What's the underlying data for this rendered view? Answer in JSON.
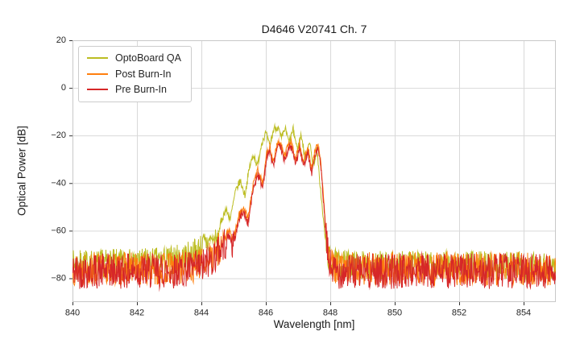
{
  "figure": {
    "title": "D4646 V20741 Ch. 7",
    "xlabel": "Wavelength [nm]",
    "ylabel": "Optical Power [dB]"
  },
  "chart_data": {
    "type": "line",
    "title": "D4646 V20741 Ch. 7",
    "xlabel": "Wavelength [nm]",
    "ylabel": "Optical Power [dB]",
    "xlim": [
      840,
      855
    ],
    "ylim": [
      -90,
      20
    ],
    "xticks": [
      840,
      842,
      844,
      846,
      848,
      850,
      852,
      854
    ],
    "yticks": [
      -80,
      -60,
      -40,
      -20,
      0,
      20
    ],
    "grid": true,
    "grid_color": "#d9d9d9",
    "border_color": "#c8c8c8",
    "tick_color": "#333333",
    "legend_position": "upper-left",
    "description": "Optical output spectra of laser channel 7 at three QA stages; flat noise floor near -77 dB with a multimode emission peak cluster between about 844.5 and 848 nm, sharp cut-off at 848 nm.",
    "series": [
      {
        "name": "OptoBoard QA",
        "color": "#bcbd22",
        "seed": 7,
        "noise": {
          "floor_amp": 6.0,
          "signal_amp": 1.6,
          "floor_threshold": -64
        },
        "envelope": [
          [
            840,
            -74
          ],
          [
            842,
            -73.5
          ],
          [
            843,
            -72.5
          ],
          [
            843.6,
            -70.5
          ],
          [
            844,
            -67
          ],
          [
            844.3,
            -63
          ],
          [
            844.45,
            -65
          ],
          [
            844.6,
            -57
          ],
          [
            844.75,
            -51
          ],
          [
            844.9,
            -55
          ],
          [
            845.05,
            -44
          ],
          [
            845.2,
            -39
          ],
          [
            845.35,
            -45
          ],
          [
            845.5,
            -33
          ],
          [
            845.62,
            -28
          ],
          [
            845.74,
            -33
          ],
          [
            845.87,
            -23
          ],
          [
            846,
            -19
          ],
          [
            846.12,
            -24.5
          ],
          [
            846.25,
            -17
          ],
          [
            846.38,
            -16.5
          ],
          [
            846.48,
            -21.5
          ],
          [
            846.6,
            -17
          ],
          [
            846.72,
            -23
          ],
          [
            846.85,
            -17.5
          ],
          [
            846.98,
            -26
          ],
          [
            847.1,
            -19.5
          ],
          [
            847.22,
            -30
          ],
          [
            847.35,
            -22
          ],
          [
            847.47,
            -33
          ],
          [
            847.58,
            -26
          ],
          [
            847.68,
            -40
          ],
          [
            847.78,
            -55
          ],
          [
            847.88,
            -67
          ],
          [
            848,
            -73.5
          ],
          [
            849,
            -74.5
          ],
          [
            855,
            -74.5
          ]
        ]
      },
      {
        "name": "Post Burn-In",
        "color": "#ff7f0e",
        "seed": 13,
        "noise": {
          "floor_amp": 7.0,
          "signal_amp": 1.4,
          "floor_threshold": -64
        },
        "envelope": [
          [
            840,
            -76
          ],
          [
            843,
            -76
          ],
          [
            844,
            -74.5
          ],
          [
            844.3,
            -71
          ],
          [
            844.5,
            -68
          ],
          [
            844.7,
            -64
          ],
          [
            844.85,
            -60
          ],
          [
            845,
            -64
          ],
          [
            845.15,
            -54
          ],
          [
            845.3,
            -50
          ],
          [
            845.45,
            -55
          ],
          [
            845.6,
            -41
          ],
          [
            845.75,
            -34
          ],
          [
            845.9,
            -40
          ],
          [
            846.02,
            -28
          ],
          [
            846.12,
            -24.5
          ],
          [
            846.22,
            -31
          ],
          [
            846.36,
            -23.5
          ],
          [
            846.46,
            -23
          ],
          [
            846.57,
            -29
          ],
          [
            846.7,
            -23.5
          ],
          [
            846.8,
            -23
          ],
          [
            846.92,
            -30
          ],
          [
            847.05,
            -23.5
          ],
          [
            847.17,
            -31
          ],
          [
            847.3,
            -24.5
          ],
          [
            847.42,
            -34
          ],
          [
            847.55,
            -25
          ],
          [
            847.63,
            -24.5
          ],
          [
            847.72,
            -33
          ],
          [
            847.8,
            -48
          ],
          [
            847.88,
            -63
          ],
          [
            847.97,
            -73
          ],
          [
            848.1,
            -76
          ],
          [
            855,
            -76
          ]
        ]
      },
      {
        "name": "Pre Burn-In",
        "color": "#d62728",
        "seed": 42,
        "noise": {
          "floor_amp": 7.5,
          "signal_amp": 1.5,
          "floor_threshold": -64
        },
        "envelope": [
          [
            840,
            -77
          ],
          [
            843,
            -77
          ],
          [
            844,
            -75.5
          ],
          [
            844.3,
            -72
          ],
          [
            844.5,
            -69
          ],
          [
            844.7,
            -66
          ],
          [
            844.85,
            -62
          ],
          [
            845,
            -66
          ],
          [
            845.15,
            -56
          ],
          [
            845.3,
            -52
          ],
          [
            845.45,
            -57
          ],
          [
            845.6,
            -43
          ],
          [
            845.75,
            -36
          ],
          [
            845.9,
            -42
          ],
          [
            846.02,
            -30
          ],
          [
            846.12,
            -26
          ],
          [
            846.22,
            -33
          ],
          [
            846.36,
            -25.5
          ],
          [
            846.46,
            -24.5
          ],
          [
            846.57,
            -31
          ],
          [
            846.7,
            -25.5
          ],
          [
            846.8,
            -25
          ],
          [
            846.92,
            -32
          ],
          [
            847.05,
            -25.5
          ],
          [
            847.17,
            -33
          ],
          [
            847.3,
            -26.5
          ],
          [
            847.42,
            -36
          ],
          [
            847.55,
            -27
          ],
          [
            847.63,
            -26
          ],
          [
            847.72,
            -35
          ],
          [
            847.8,
            -50
          ],
          [
            847.88,
            -65
          ],
          [
            847.97,
            -74
          ],
          [
            848.1,
            -77
          ],
          [
            855,
            -77
          ]
        ]
      }
    ]
  }
}
